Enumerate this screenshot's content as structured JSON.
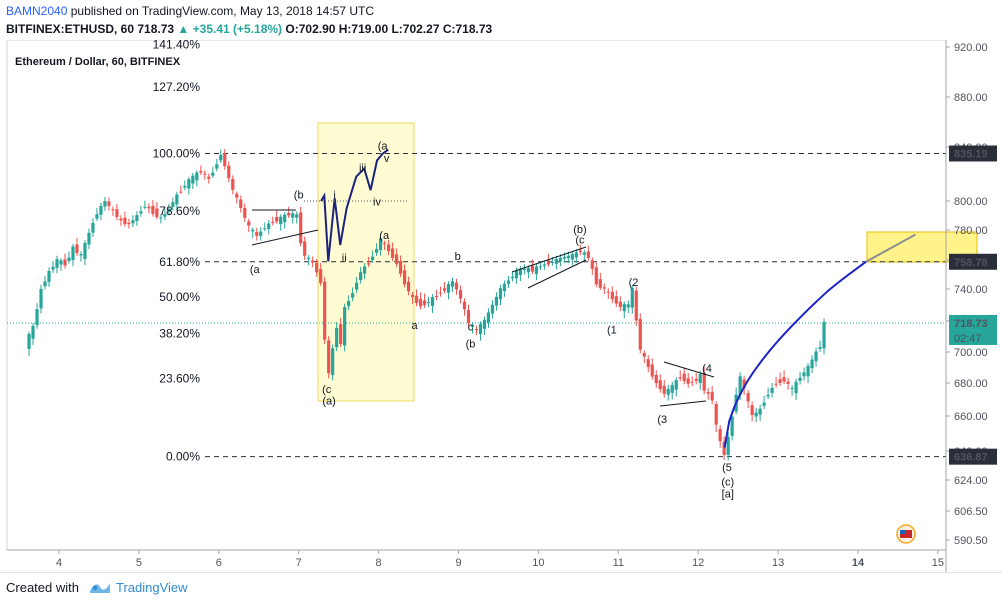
{
  "header": {
    "author": "BAMN2040",
    "published_text": "published on TradingView.com, May 13, 2018 14:57 UTC",
    "symbol": "BITFINEX:ETHUSD, 60",
    "last": "718.73",
    "change": "+35.41 (+5.18%)",
    "ohlc": "O:702.90 H:719.00 L:702.27 C:718.73"
  },
  "footer": {
    "created_with": "Created with",
    "brand": "TradingView"
  },
  "chart_data": {
    "type": "candlestick",
    "title": "Ethereum / Dollar, 60, BITFINEX",
    "x_ticks": [
      "4",
      "5",
      "6",
      "7",
      "8",
      "9",
      "10",
      "11",
      "12",
      "13",
      "14",
      "15"
    ],
    "y_ticks": [
      "920.00",
      "880.00",
      "840.00",
      "800.00",
      "780.00",
      "760.00",
      "740.00",
      "720.00",
      "700.00",
      "680.00",
      "660.00",
      "640.00",
      "624.00",
      "606.50",
      "590.50"
    ],
    "ylim": [
      586,
      925
    ],
    "grid": false,
    "price_labels": [
      {
        "value": 835.19,
        "text": "835.19",
        "color": "#2a2e39"
      },
      {
        "value": 758.78,
        "text": "758.78",
        "color": "#2a2e39"
      },
      {
        "value": 718.73,
        "text": "718.73",
        "color": "#26a69a"
      },
      {
        "value": 636.87,
        "text": "636.87",
        "color": "#2a2e39"
      }
    ],
    "countdown": "02:47",
    "fib_levels": [
      {
        "label": "141.40%",
        "value": 922
      },
      {
        "label": "127.20%",
        "value": 888
      },
      {
        "label": "100.00%",
        "value": 835.19
      },
      {
        "label": "78.60%",
        "value": 793
      },
      {
        "label": "61.80%",
        "value": 758.78
      },
      {
        "label": "50.00%",
        "value": 735
      },
      {
        "label": "38.20%",
        "value": 712
      },
      {
        "label": "23.60%",
        "value": 683
      },
      {
        "label": "0.00%",
        "value": 636.87
      }
    ],
    "wave_labels": [
      {
        "text": "(b",
        "x": 7.0,
        "y": 802
      },
      {
        "text": "(a",
        "x": 6.45,
        "y": 751
      },
      {
        "text": "(a",
        "x": 8.05,
        "y": 838
      },
      {
        "text": "v",
        "x": 8.1,
        "y": 829
      },
      {
        "text": "iii",
        "x": 7.8,
        "y": 822
      },
      {
        "text": "iv",
        "x": 7.98,
        "y": 797
      },
      {
        "text": "i",
        "x": 7.45,
        "y": 802
      },
      {
        "text": "ii",
        "x": 7.57,
        "y": 759
      },
      {
        "text": "(a",
        "x": 8.07,
        "y": 774
      },
      {
        "text": "(c",
        "x": 7.35,
        "y": 674
      },
      {
        "text": "(a)",
        "x": 7.38,
        "y": 667
      },
      {
        "text": "a",
        "x": 8.45,
        "y": 715
      },
      {
        "text": "b",
        "x": 8.99,
        "y": 760
      },
      {
        "text": "c",
        "x": 9.15,
        "y": 714
      },
      {
        "text": "(b",
        "x": 9.15,
        "y": 703
      },
      {
        "text": "(b)",
        "x": 10.52,
        "y": 778
      },
      {
        "text": "(c",
        "x": 10.52,
        "y": 771
      },
      {
        "text": "(2",
        "x": 11.19,
        "y": 742
      },
      {
        "text": "(1",
        "x": 10.92,
        "y": 712
      },
      {
        "text": "(4",
        "x": 12.11,
        "y": 687
      },
      {
        "text": "(3",
        "x": 11.55,
        "y": 656
      },
      {
        "text": "(5",
        "x": 12.36,
        "y": 629
      },
      {
        "text": "(c)",
        "x": 12.37,
        "y": 621
      },
      {
        "text": "[a]",
        "x": 12.37,
        "y": 614
      }
    ],
    "price_path": [
      [
        3.6,
        705
      ],
      [
        3.7,
        716
      ],
      [
        3.8,
        740
      ],
      [
        3.9,
        752
      ],
      [
        4.0,
        760
      ],
      [
        4.1,
        757
      ],
      [
        4.2,
        768
      ],
      [
        4.3,
        763
      ],
      [
        4.4,
        778
      ],
      [
        4.5,
        792
      ],
      [
        4.6,
        800
      ],
      [
        4.7,
        793
      ],
      [
        4.8,
        786
      ],
      [
        4.9,
        784
      ],
      [
        5.0,
        790
      ],
      [
        5.1,
        797
      ],
      [
        5.2,
        792
      ],
      [
        5.3,
        788
      ],
      [
        5.4,
        795
      ],
      [
        5.5,
        804
      ],
      [
        5.6,
        812
      ],
      [
        5.7,
        818
      ],
      [
        5.8,
        822
      ],
      [
        5.9,
        816
      ],
      [
        6.0,
        828
      ],
      [
        6.05,
        835
      ],
      [
        6.1,
        826
      ],
      [
        6.2,
        808
      ],
      [
        6.3,
        795
      ],
      [
        6.4,
        782
      ],
      [
        6.5,
        776
      ],
      [
        6.6,
        782
      ],
      [
        6.7,
        786
      ],
      [
        6.8,
        788
      ],
      [
        6.9,
        791
      ],
      [
        7.0,
        790
      ],
      [
        7.05,
        772
      ],
      [
        7.1,
        763
      ],
      [
        7.2,
        758
      ],
      [
        7.3,
        745
      ],
      [
        7.35,
        708
      ],
      [
        7.4,
        686
      ],
      [
        7.45,
        702
      ],
      [
        7.5,
        716
      ],
      [
        7.55,
        706
      ],
      [
        7.6,
        728
      ],
      [
        7.7,
        738
      ],
      [
        7.8,
        752
      ],
      [
        7.9,
        758
      ],
      [
        8.0,
        768
      ],
      [
        8.05,
        774
      ],
      [
        8.15,
        766
      ],
      [
        8.25,
        758
      ],
      [
        8.35,
        744
      ],
      [
        8.45,
        734
      ],
      [
        8.55,
        730
      ],
      [
        8.65,
        732
      ],
      [
        8.75,
        736
      ],
      [
        8.85,
        740
      ],
      [
        8.95,
        745
      ],
      [
        9.05,
        734
      ],
      [
        9.15,
        719
      ],
      [
        9.25,
        714
      ],
      [
        9.35,
        720
      ],
      [
        9.45,
        730
      ],
      [
        9.55,
        740
      ],
      [
        9.65,
        746
      ],
      [
        9.75,
        752
      ],
      [
        9.85,
        754
      ],
      [
        9.95,
        753
      ],
      [
        10.05,
        756
      ],
      [
        10.15,
        758
      ],
      [
        10.25,
        760
      ],
      [
        10.35,
        762
      ],
      [
        10.45,
        763
      ],
      [
        10.55,
        766
      ],
      [
        10.65,
        762
      ],
      [
        10.75,
        744
      ],
      [
        10.85,
        740
      ],
      [
        10.95,
        734
      ],
      [
        11.05,
        729
      ],
      [
        11.15,
        730
      ],
      [
        11.2,
        740
      ],
      [
        11.25,
        720
      ],
      [
        11.3,
        702
      ],
      [
        11.4,
        690
      ],
      [
        11.5,
        680
      ],
      [
        11.6,
        674
      ],
      [
        11.7,
        678
      ],
      [
        11.8,
        684
      ],
      [
        11.9,
        680
      ],
      [
        12.0,
        682
      ],
      [
        12.05,
        685
      ],
      [
        12.1,
        676
      ],
      [
        12.2,
        670
      ],
      [
        12.25,
        654
      ],
      [
        12.3,
        645
      ],
      [
        12.35,
        638
      ],
      [
        12.4,
        648
      ],
      [
        12.45,
        660
      ],
      [
        12.5,
        674
      ],
      [
        12.55,
        684
      ],
      [
        12.6,
        676
      ],
      [
        12.7,
        660
      ],
      [
        12.8,
        664
      ],
      [
        12.9,
        674
      ],
      [
        13.0,
        680
      ],
      [
        13.1,
        682
      ],
      [
        13.2,
        676
      ],
      [
        13.3,
        684
      ],
      [
        13.4,
        690
      ],
      [
        13.5,
        700
      ],
      [
        13.55,
        704
      ],
      [
        13.6,
        718.73
      ]
    ]
  }
}
